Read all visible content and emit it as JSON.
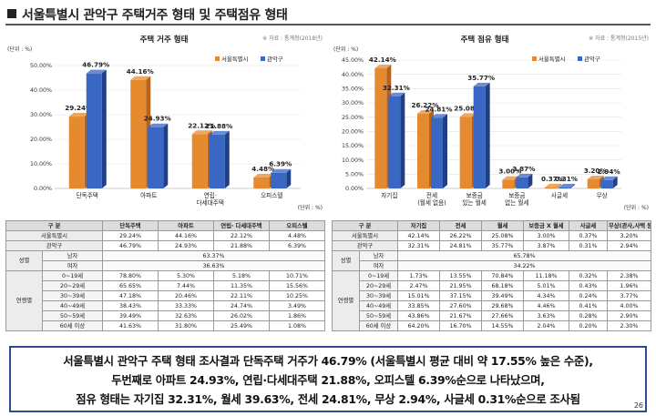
{
  "page": {
    "title": "서울특별시 관악구 주택거주 형태 및 주택점유 형태",
    "page_number": "26"
  },
  "colors": {
    "seoul": "#e58a2e",
    "gwanak": "#3a66c4",
    "seoul_dark": "#b8621a",
    "gwanak_dark": "#1f3f86"
  },
  "chart_data": [
    {
      "type": "bar",
      "title": "주택 거주 형태",
      "source": "※ 자료 : 통계청(2018년)",
      "unit_top": "(단위 : %)",
      "unit_side": "(단위 : %)",
      "categories": [
        "단독주택",
        "아파트",
        "연립·\n다세대주택",
        "오피스텔"
      ],
      "series": [
        {
          "name": "서울특별시",
          "values": [
            29.24,
            44.16,
            22.12,
            4.48
          ]
        },
        {
          "name": "관악구",
          "values": [
            46.79,
            24.93,
            21.88,
            6.39
          ]
        }
      ],
      "labels": [
        [
          "29.24%",
          "44.16%",
          "22.12%",
          "4.48%"
        ],
        [
          "46.79%",
          "24.93%",
          "21.88%",
          "6.39%"
        ]
      ],
      "yticks": [
        "0.00%",
        "10.00%",
        "20.00%",
        "30.00%",
        "40.00%",
        "50.00%"
      ],
      "ylim": [
        0,
        50
      ],
      "legend": "top-right"
    },
    {
      "type": "bar",
      "title": "주택 점유 형태",
      "source": "※ 자료 : 통계청(2015년)",
      "unit_top": "(단위 : %)",
      "unit_side": "(단위 : %)",
      "categories": [
        "자기집",
        "전세\n(월세 없음)",
        "보증금\n있는 월세",
        "보증금\n없는 월세",
        "사글세",
        "무상"
      ],
      "series": [
        {
          "name": "서울특별시",
          "values": [
            42.14,
            26.22,
            25.08,
            3.0,
            0.37,
            3.2
          ]
        },
        {
          "name": "관악구",
          "values": [
            32.31,
            24.81,
            35.77,
            3.87,
            0.31,
            2.94
          ]
        }
      ],
      "labels": [
        [
          "42.14%",
          "26.22%",
          "25.08%",
          "3.00%",
          "0.37%",
          "3.20%"
        ],
        [
          "32.31%",
          "24.81%",
          "35.77%",
          "3.87%",
          "0.31%",
          "2.94%"
        ]
      ],
      "yticks": [
        "0.00%",
        "5.00%",
        "10.00%",
        "15.00%",
        "20.00%",
        "25.00%",
        "30.00%",
        "35.00%",
        "40.00%",
        "45.00%"
      ],
      "ylim": [
        0,
        45
      ],
      "legend": "top-right"
    }
  ],
  "tables": {
    "left": {
      "header": [
        "구 분",
        "",
        "단독주택",
        "아파트",
        "연립·\n다세대주택",
        "오피스텔"
      ],
      "rows": [
        {
          "group": "",
          "label": "서울특별시",
          "values": [
            "29.24%",
            "44.16%",
            "22.12%",
            "4.48%"
          ]
        },
        {
          "group": "",
          "label": "관악구",
          "values": [
            "46.79%",
            "24.93%",
            "21.88%",
            "6.39%"
          ]
        }
      ],
      "gender_group": "성별",
      "gender": [
        {
          "label": "남자",
          "value": "63.37%"
        },
        {
          "label": "여자",
          "value": "36.63%"
        }
      ],
      "age_group": "연령별",
      "ages": [
        {
          "label": "0~19세",
          "values": [
            "78.80%",
            "5.30%",
            "5.18%",
            "10.71%"
          ]
        },
        {
          "label": "20~29세",
          "values": [
            "65.65%",
            "7.44%",
            "11.35%",
            "15.56%"
          ]
        },
        {
          "label": "30~39세",
          "values": [
            "47.18%",
            "20.46%",
            "22.11%",
            "10.25%"
          ]
        },
        {
          "label": "40~49세",
          "values": [
            "38.43%",
            "33.33%",
            "24.74%",
            "3.49%"
          ]
        },
        {
          "label": "50~59세",
          "values": [
            "39.49%",
            "32.63%",
            "26.02%",
            "1.86%"
          ]
        },
        {
          "label": "60세 이상",
          "values": [
            "41.63%",
            "31.80%",
            "25.49%",
            "1.08%"
          ]
        }
      ]
    },
    "right": {
      "header": [
        "구 분",
        "",
        "자기집",
        "전세",
        "월세",
        "보증금 X 월세",
        "사글세",
        "무상(관사,사택 등)"
      ],
      "rows": [
        {
          "label": "서울특별시",
          "values": [
            "42.14%",
            "26.22%",
            "25.08%",
            "3.00%",
            "0.37%",
            "3.20%"
          ]
        },
        {
          "label": "관악구",
          "values": [
            "32.31%",
            "24.81%",
            "35.77%",
            "3.87%",
            "0.31%",
            "2.94%"
          ]
        }
      ],
      "gender_group": "성별",
      "gender": [
        {
          "label": "남자",
          "value": "65.78%"
        },
        {
          "label": "여자",
          "value": "34.22%"
        }
      ],
      "age_group": "연령별",
      "ages": [
        {
          "label": "0~19세",
          "values": [
            "1.73%",
            "13.55%",
            "70.84%",
            "11.18%",
            "0.32%",
            "2.38%"
          ]
        },
        {
          "label": "20~29세",
          "values": [
            "2.47%",
            "21.95%",
            "68.18%",
            "5.01%",
            "0.43%",
            "1.96%"
          ]
        },
        {
          "label": "30~39세",
          "values": [
            "15.01%",
            "37.15%",
            "39.49%",
            "4.34%",
            "0.24%",
            "3.77%"
          ]
        },
        {
          "label": "40~49세",
          "values": [
            "33.85%",
            "27.60%",
            "29.68%",
            "4.46%",
            "0.41%",
            "4.00%"
          ]
        },
        {
          "label": "50~59세",
          "values": [
            "43.86%",
            "21.67%",
            "27.66%",
            "3.63%",
            "0.28%",
            "2.90%"
          ]
        },
        {
          "label": "60세 이상",
          "values": [
            "64.20%",
            "16.70%",
            "14.55%",
            "2.04%",
            "0.20%",
            "2.30%"
          ]
        }
      ]
    }
  },
  "summary": {
    "line1": "서울특별시 관악구 주택 형태 조사결과 단독주택 거주가 46.79% (서울특별시 평균 대비 약 17.55% 높은 수준),",
    "line2": "두번째로 아파트 24.93%, 연립·다세대주택 21.88%, 오피스텔 6.39%순으로 나타났으며,",
    "line3": "점유 형태는 자기집 32.31%, 월세 39.63%, 전세 24.81%, 무상 2.94%, 사글세 0.31%순으로 조사됨"
  }
}
